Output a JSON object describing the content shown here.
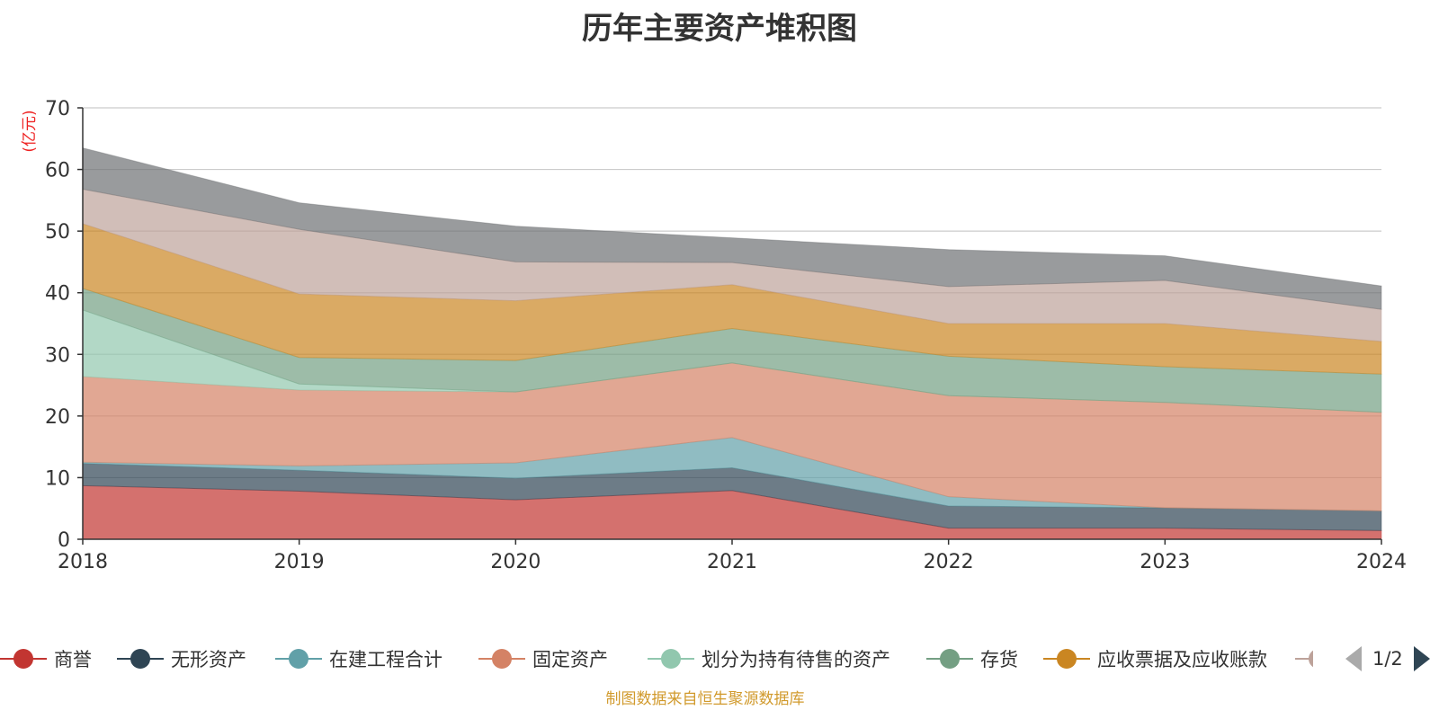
{
  "chart_data": {
    "type": "area",
    "stacked": true,
    "title": "历年主要资产堆积图",
    "unit_label": "(亿元)",
    "x": [
      "2018",
      "2019",
      "2020",
      "2021",
      "2022",
      "2023",
      "2024"
    ],
    "ylim": [
      0,
      70
    ],
    "yticks": [
      0,
      10,
      20,
      30,
      40,
      50,
      60,
      70
    ],
    "grid": true,
    "series": [
      {
        "name": "商誉",
        "color": "#c23531",
        "values": [
          8.7,
          7.8,
          6.4,
          7.9,
          1.8,
          1.8,
          1.4
        ]
      },
      {
        "name": "无形资产",
        "color": "#2f4554",
        "values": [
          3.6,
          3.4,
          3.5,
          3.7,
          3.6,
          3.3,
          3.2
        ]
      },
      {
        "name": "在建工程合计",
        "color": "#61a0a8",
        "values": [
          0.2,
          0.7,
          2.5,
          4.9,
          1.5,
          0.0,
          0.0
        ]
      },
      {
        "name": "固定资产",
        "color": "#d48265",
        "values": [
          13.9,
          12.3,
          11.5,
          12.1,
          16.4,
          17.1,
          16.0
        ]
      },
      {
        "name": "划分为持有待售的资产",
        "color": "#91c7ae",
        "values": [
          10.8,
          1.0,
          0.0,
          0.0,
          0.0,
          0.0,
          0.0
        ]
      },
      {
        "name": "存货",
        "color": "#749f83",
        "values": [
          3.5,
          4.3,
          5.1,
          5.6,
          6.4,
          5.8,
          6.2
        ]
      },
      {
        "name": "应收票据及应收账款",
        "color": "#ca8622",
        "values": [
          10.5,
          10.3,
          9.7,
          7.1,
          5.3,
          7.0,
          5.3
        ]
      },
      {
        "name": "",
        "color": "#bda29a",
        "values": [
          5.6,
          10.5,
          6.3,
          3.6,
          6.0,
          7.0,
          5.2
        ]
      },
      {
        "name": "",
        "color": "#6e7074",
        "values": [
          6.7,
          4.3,
          5.8,
          4.0,
          6.0,
          4.0,
          3.8
        ]
      }
    ]
  },
  "legend": {
    "page_indicator": "1/2"
  },
  "footer": {
    "source_note": "制图数据来自恒生聚源数据库"
  }
}
